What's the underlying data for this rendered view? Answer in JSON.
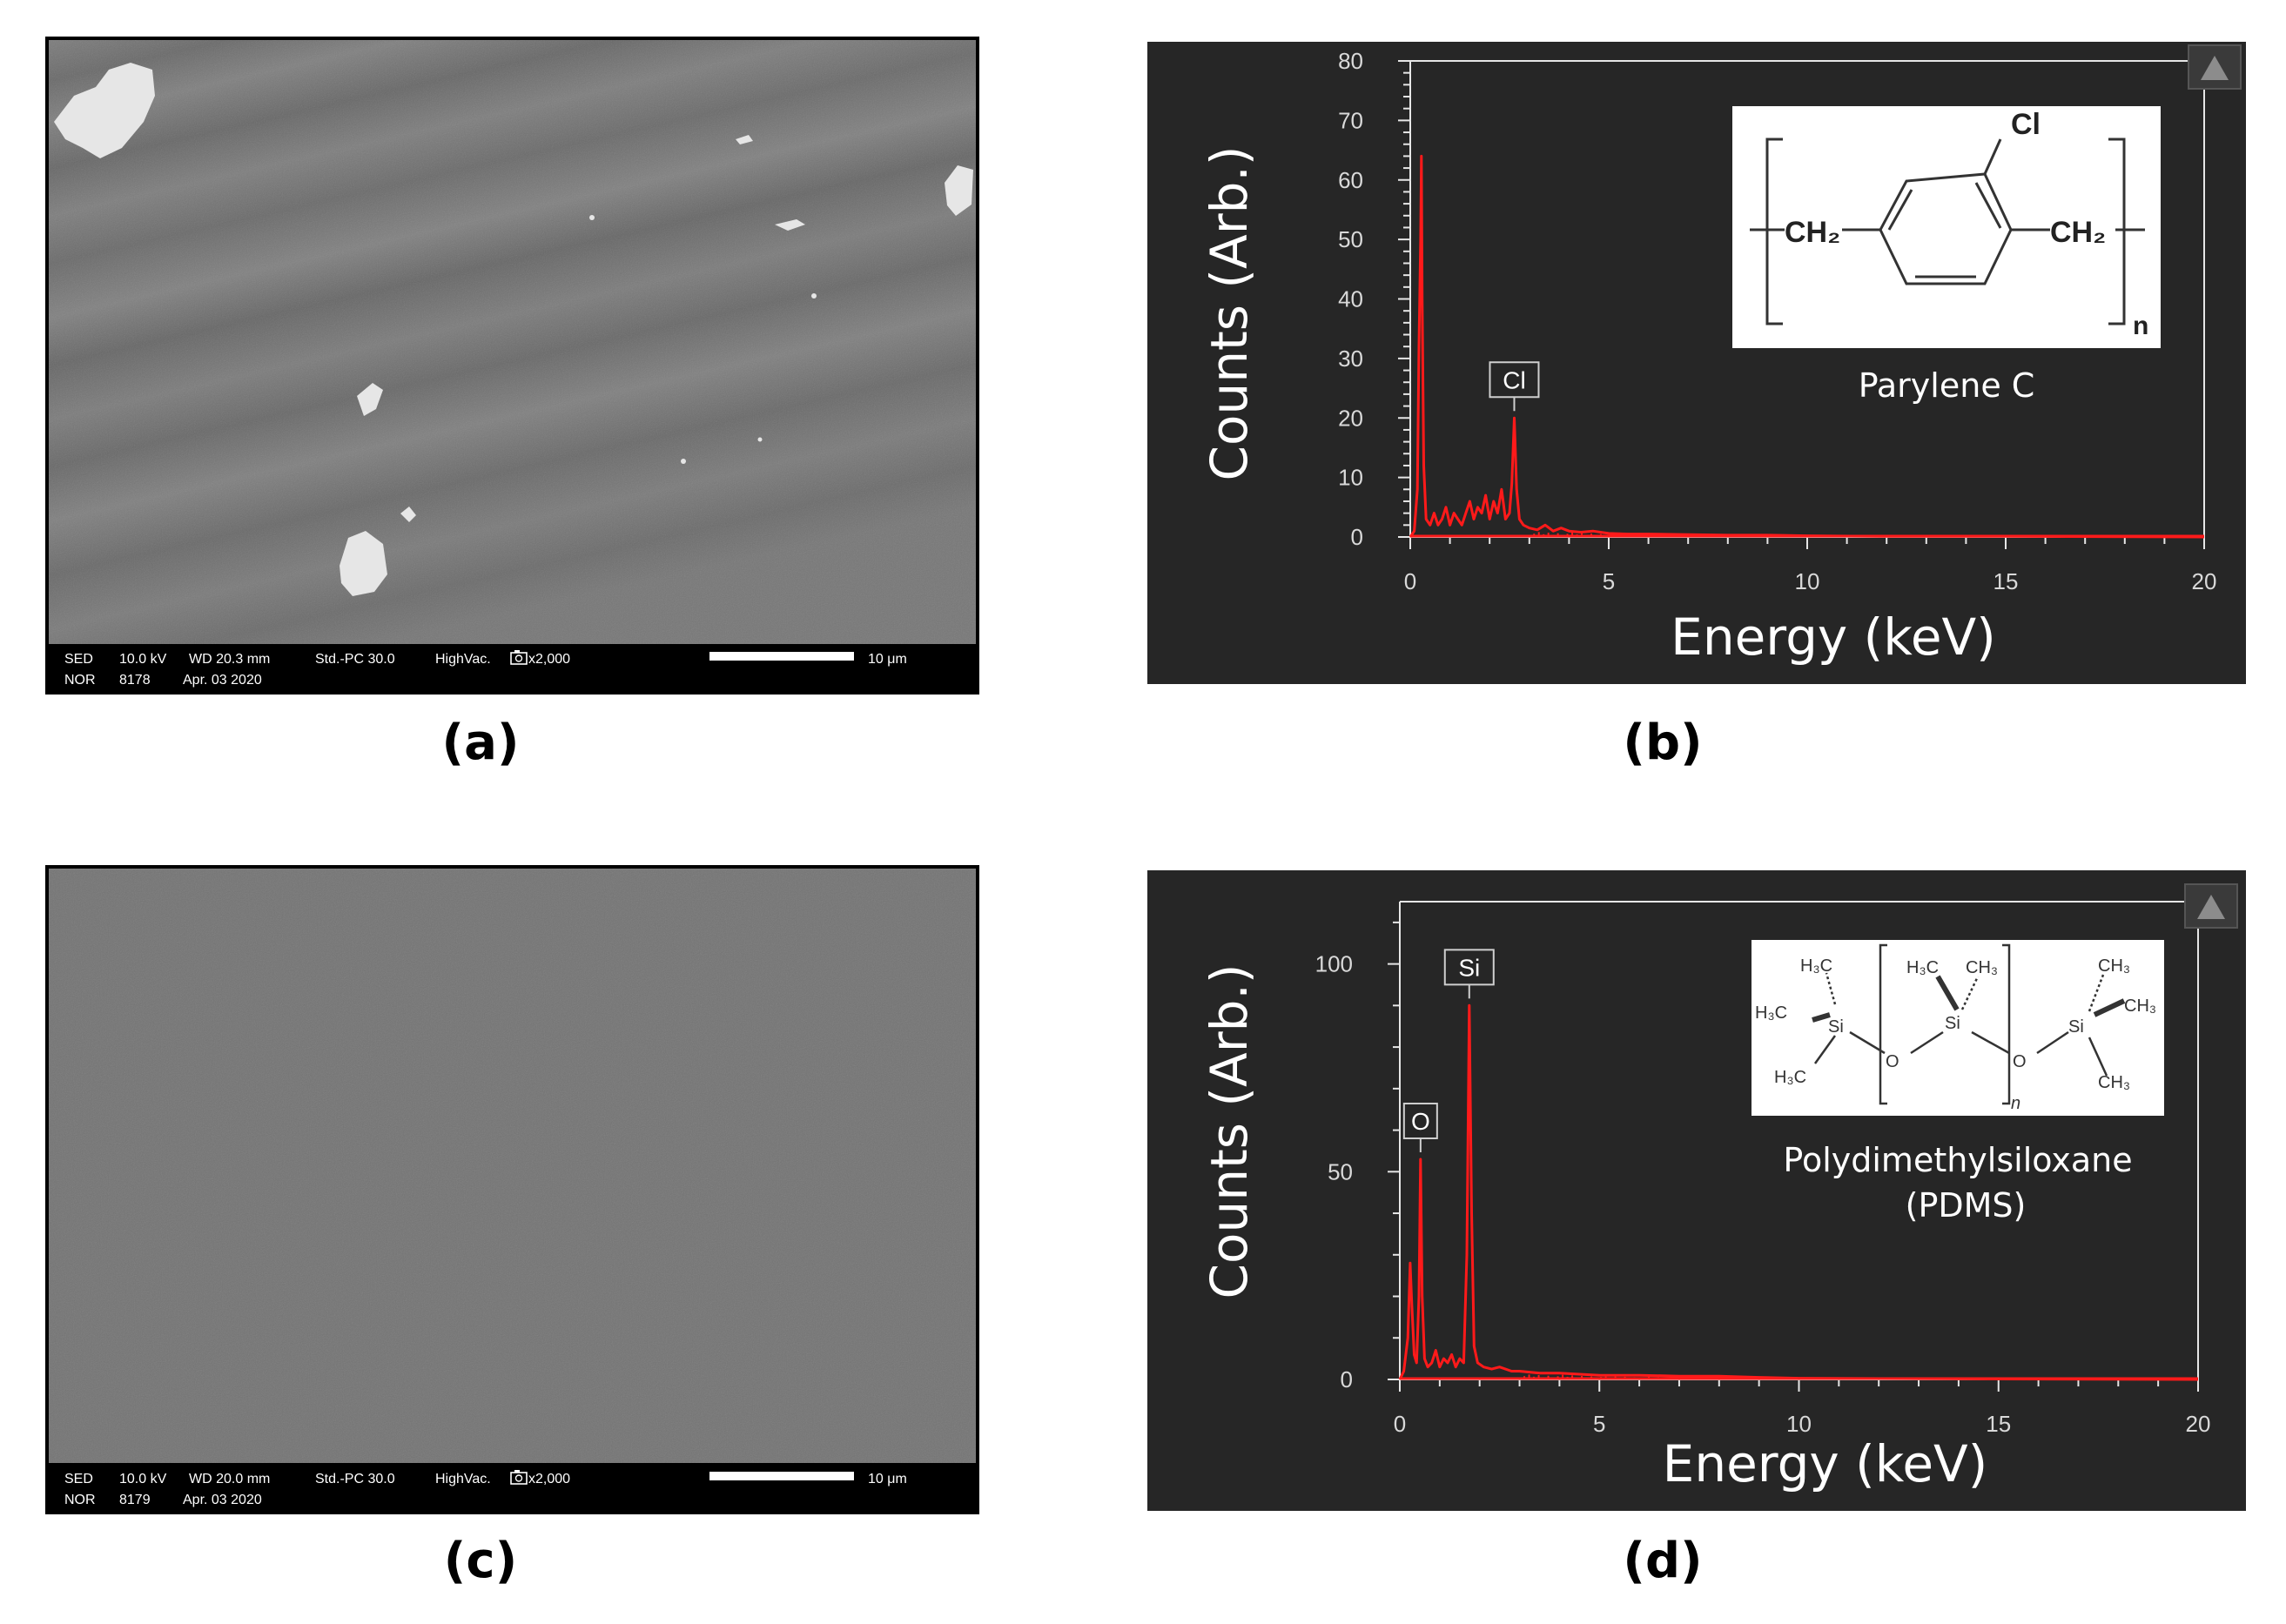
{
  "colors": {
    "background": "#ffffff",
    "plot_bg": "#262626",
    "axis": "#e6e6e6",
    "spectrum": "#ff1a1a",
    "sem_bar": "#000000"
  },
  "panels": [
    {
      "caption": "(a)",
      "type": "sem-image",
      "info": {
        "line1": [
          "SED",
          "10.0 kV",
          "WD 20.3 mm",
          "Std.-PC 30.0",
          "HighVac.",
          "x2,000"
        ],
        "line2": [
          "NOR",
          "8178",
          "Apr. 03 2020"
        ],
        "scale_label": "10 μm"
      }
    },
    {
      "caption": "(b)",
      "type": "eds-spectrum",
      "material": "Parylene C",
      "structure": {
        "atoms": [
          "Cl",
          "CH₂",
          "CH₂",
          "n"
        ]
      }
    },
    {
      "caption": "(c)",
      "type": "sem-image",
      "info": {
        "line1": [
          "SED",
          "10.0 kV",
          "WD 20.0 mm",
          "Std.-PC 30.0",
          "HighVac.",
          "x2,000"
        ],
        "line2": [
          "NOR",
          "8179",
          "Apr. 03 2020"
        ],
        "scale_label": "10 μm"
      }
    },
    {
      "caption": "(d)",
      "type": "eds-spectrum",
      "material_lines": [
        "Polydimethylsiloxane",
        "(PDMS)"
      ],
      "structure": {
        "atoms": [
          "H₃C",
          "H₃C",
          "H₃C",
          "Si",
          "O",
          "H₃C",
          "CH₃",
          "Si",
          "O",
          "Si",
          "CH₃",
          "CH₃",
          "CH₃",
          "n"
        ]
      }
    }
  ],
  "chart_data": [
    {
      "type": "line",
      "panel": "(b)",
      "xlabel": "Energy (keV)",
      "ylabel": "Counts (Arb.)",
      "xlim": [
        0,
        20
      ],
      "ylim": [
        0,
        80
      ],
      "xticks": [
        0,
        5,
        10,
        15,
        20
      ],
      "yticks": [
        0,
        10,
        20,
        30,
        40,
        50,
        60,
        70,
        80
      ],
      "peaks": [
        {
          "label": "",
          "x": 0.28,
          "y": 64
        },
        {
          "label": "Cl",
          "x": 2.62,
          "y": 20
        }
      ],
      "series": [
        {
          "x": [
            0.0,
            0.1,
            0.18,
            0.22,
            0.26,
            0.28,
            0.3,
            0.34,
            0.4,
            0.5,
            0.6,
            0.7,
            0.8,
            0.9,
            1.0,
            1.1,
            1.2,
            1.3,
            1.4,
            1.5,
            1.6,
            1.7,
            1.8,
            1.9,
            2.0,
            2.1,
            2.2,
            2.3,
            2.4,
            2.5,
            2.56,
            2.62,
            2.68,
            2.75,
            2.85,
            3.0,
            3.2,
            3.4,
            3.6,
            3.8,
            4.0,
            4.3,
            4.6,
            5.0,
            5.5,
            6.0,
            7.0,
            8.0,
            9.0,
            10.0,
            12.0,
            15.0,
            20.0
          ],
          "y": [
            0,
            1,
            8,
            32,
            50,
            64,
            40,
            12,
            3,
            2,
            4,
            2,
            3,
            5,
            2,
            4,
            3,
            2,
            4,
            6,
            3,
            5,
            4,
            7,
            3,
            6,
            4,
            8,
            3,
            4,
            9,
            20,
            8,
            3,
            2,
            1.5,
            1.2,
            2,
            1,
            1.5,
            1,
            0.8,
            1,
            0.6,
            0.5,
            0.5,
            0.4,
            0.3,
            0.3,
            0.2,
            0.1,
            0.1,
            0
          ]
        }
      ]
    },
    {
      "type": "line",
      "panel": "(d)",
      "xlabel": "Energy (keV)",
      "ylabel": "Counts (Arb.)",
      "xlim": [
        0,
        20
      ],
      "ylim": [
        0,
        115
      ],
      "xticks": [
        0,
        5,
        10,
        15,
        20
      ],
      "yticks": [
        0,
        50,
        100
      ],
      "peaks": [
        {
          "label": "O",
          "x": 0.52,
          "y": 53
        },
        {
          "label": "Si",
          "x": 1.74,
          "y": 90
        }
      ],
      "series": [
        {
          "x": [
            0.0,
            0.1,
            0.2,
            0.26,
            0.3,
            0.36,
            0.42,
            0.48,
            0.52,
            0.56,
            0.62,
            0.7,
            0.8,
            0.9,
            1.0,
            1.1,
            1.2,
            1.3,
            1.4,
            1.5,
            1.6,
            1.68,
            1.74,
            1.8,
            1.86,
            1.95,
            2.1,
            2.3,
            2.5,
            2.8,
            3.0,
            3.5,
            4.0,
            5.0,
            6.0,
            7.0,
            8.0,
            9.0,
            10.0,
            12.0,
            15.0,
            20.0
          ],
          "y": [
            0,
            2,
            10,
            28,
            18,
            6,
            4,
            20,
            53,
            20,
            5,
            3,
            4,
            7,
            3,
            5,
            4,
            6,
            3,
            5,
            4,
            30,
            90,
            40,
            8,
            4,
            3,
            2.5,
            3,
            2,
            2,
            1.5,
            1.5,
            1,
            1,
            0.8,
            0.8,
            0.5,
            0.3,
            0.2,
            0.1,
            0
          ]
        }
      ]
    }
  ]
}
